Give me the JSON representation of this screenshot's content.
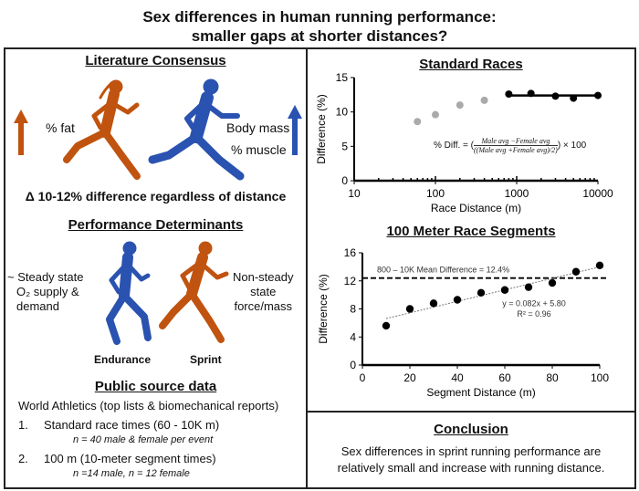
{
  "title_line1": "Sex differences in human running performance:",
  "title_line2": "smaller gaps at shorter distances?",
  "colors": {
    "female": "#c0530f",
    "male": "#2a52b0",
    "grey_points": "#aaaaaa"
  },
  "literature": {
    "heading": "Literature Consensus",
    "fat": "% fat",
    "mass": "Body mass",
    "muscle": "% muscle",
    "delta": "Δ 10-12% difference regardless of distance"
  },
  "determinants": {
    "heading": "Performance Determinants",
    "left": [
      "~ Steady state",
      "O₂ supply &",
      "demand"
    ],
    "right": [
      "Non-steady",
      "state",
      "force/mass"
    ],
    "endurance": "Endurance",
    "sprint": "Sprint"
  },
  "source": {
    "heading": "Public source data",
    "intro": "World Athletics (top lists & biomechanical reports)",
    "items": [
      {
        "num": "1.",
        "text": "Standard race times (60 - 10K m)",
        "note": "n = 40 male & female per event"
      },
      {
        "num": "2.",
        "text": "100 m (10-meter segment times)",
        "note": "n =14 male, n = 12 female"
      }
    ]
  },
  "conclusion": {
    "heading": "Conclusion",
    "text1": "Sex differences in sprint running performance are",
    "text2": "relatively small and increase with running distance."
  },
  "formula": {
    "lhs": "% Diff. =",
    "num": "Male avg −Female avg",
    "den": "((Male avg +Female avg)/2)",
    "rhs": "× 100"
  },
  "chart_data": [
    {
      "type": "scatter",
      "title": "Standard Races",
      "xlabel": "Race Distance (m)",
      "ylabel": "Difference (%)",
      "xscale": "log",
      "xlim": [
        10,
        10000
      ],
      "ylim": [
        0,
        15
      ],
      "xticks": [
        10,
        100,
        1000,
        10000
      ],
      "yticks": [
        0,
        5,
        10,
        15
      ],
      "series": [
        {
          "color": "#aaaaaa",
          "x": [
            60,
            100,
            200,
            400
          ],
          "y": [
            8.6,
            9.6,
            11.0,
            11.7
          ]
        },
        {
          "color": "#000000",
          "x": [
            800,
            1500,
            3000,
            5000,
            10000
          ],
          "y": [
            12.6,
            12.7,
            12.3,
            12.0,
            12.4
          ],
          "mean_line": 12.4
        }
      ]
    },
    {
      "type": "scatter",
      "title": "100 Meter Race Segments",
      "xlabel": "Segment Distance (m)",
      "ylabel": "Difference (%)",
      "xlim": [
        0,
        100
      ],
      "ylim": [
        0,
        16
      ],
      "xticks": [
        0,
        20,
        40,
        60,
        80,
        100
      ],
      "yticks": [
        0,
        4,
        8,
        12,
        16
      ],
      "x": [
        10,
        20,
        30,
        40,
        50,
        60,
        70,
        80,
        90,
        100
      ],
      "y": [
        5.6,
        8.0,
        8.8,
        9.3,
        10.3,
        10.7,
        11.1,
        11.7,
        13.3,
        14.2
      ],
      "reference_line": {
        "y": 12.4,
        "label": "800 – 10K Mean Difference = 12.4%"
      },
      "trendline": {
        "slope": 0.082,
        "intercept": 5.8,
        "equation": "y = 0.082x + 5.80",
        "r2": "R² = 0.96"
      }
    }
  ]
}
